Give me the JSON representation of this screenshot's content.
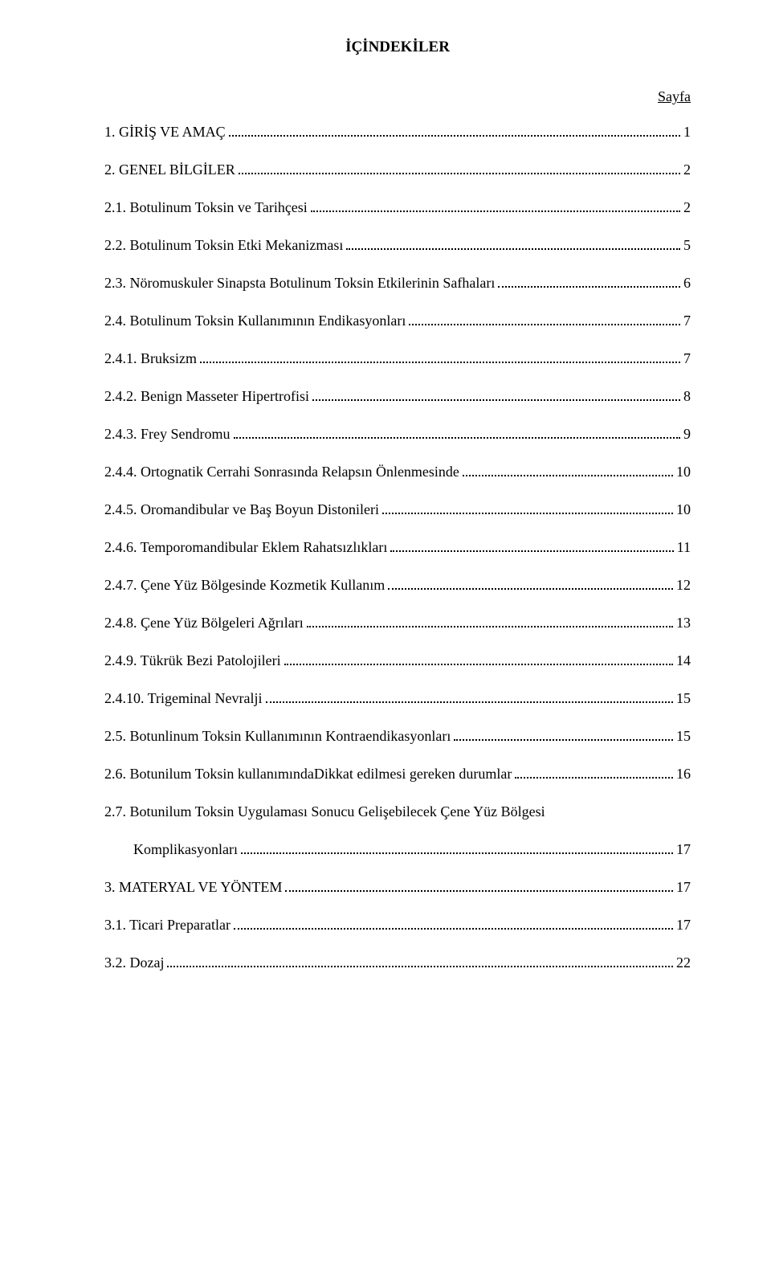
{
  "title": "İÇİNDEKİLER",
  "sayfa": "Sayfa",
  "toc": [
    {
      "label": "1. GİRİŞ VE AMAÇ",
      "page": "1",
      "indent": false
    },
    {
      "label": "2. GENEL BİLGİLER",
      "page": "2",
      "indent": false
    },
    {
      "label": "2.1. Botulinum Toksin ve Tarihçesi",
      "page": "2",
      "indent": false
    },
    {
      "label": "2.2. Botulinum Toksin Etki Mekanizması",
      "page": "5",
      "indent": false
    },
    {
      "label": "2.3. Nöromuskuler Sinapsta Botulinum Toksin Etkilerinin Safhaları",
      "page": "6",
      "indent": false
    },
    {
      "label": "2.4. Botulinum Toksin Kullanımının Endikasyonları",
      "page": "7",
      "indent": false
    },
    {
      "label": "2.4.1. Bruksizm",
      "page": "7",
      "indent": false
    },
    {
      "label": "2.4.2. Benign Masseter Hipertrofisi",
      "page": "8",
      "indent": false
    },
    {
      "label": "2.4.3. Frey Sendromu",
      "page": "9",
      "indent": false
    },
    {
      "label": "2.4.4. Ortognatik Cerrahi Sonrasında Relapsın Önlenmesinde",
      "page": "10",
      "indent": false
    },
    {
      "label": "2.4.5. Oromandibular ve Baş Boyun Distonileri",
      "page": "10",
      "indent": false
    },
    {
      "label": "2.4.6. Temporomandibular Eklem Rahatsızlıkları",
      "page": "11",
      "indent": false
    },
    {
      "label": "2.4.7. Çene Yüz Bölgesinde Kozmetik Kullanım",
      "page": "12",
      "indent": false
    },
    {
      "label": "2.4.8. Çene Yüz Bölgeleri Ağrıları",
      "page": "13",
      "indent": false
    },
    {
      "label": "2.4.9. Tükrük Bezi Patolojileri",
      "page": "14",
      "indent": false
    },
    {
      "label": "2.4.10. Trigeminal Nevralji",
      "page": "15",
      "indent": false
    },
    {
      "label": "2.5. Botunlinum Toksin Kullanımının Kontraendikasyonları",
      "page": "15",
      "indent": false
    },
    {
      "label": "2.6. Botunilum Toksin kullanımındaDikkat edilmesi gereken durumlar",
      "page": "16",
      "indent": false
    }
  ],
  "toc_multi": {
    "first": "2.7. Botunilum Toksin Uygulaması Sonucu Gelişebilecek Çene Yüz Bölgesi",
    "second": "Komplikasyonları",
    "page": "17"
  },
  "toc_tail": [
    {
      "label": "3. MATERYAL VE YÖNTEM",
      "page": "17",
      "indent": false
    },
    {
      "label": "3.1. Ticari Preparatlar",
      "page": "17",
      "indent": false
    },
    {
      "label": "3.2. Dozaj",
      "page": "22",
      "indent": false
    }
  ]
}
